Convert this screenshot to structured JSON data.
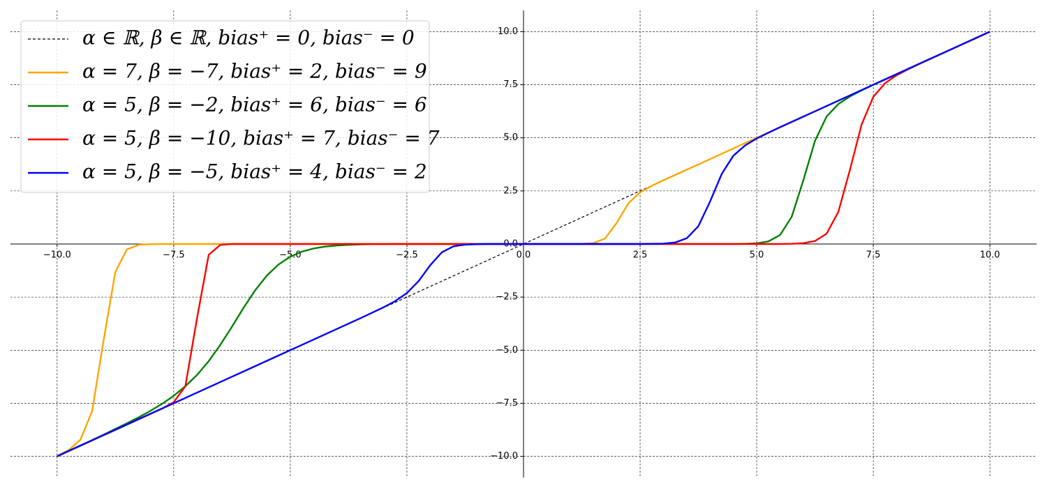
{
  "chart_data": {
    "type": "line",
    "x": [
      -10,
      -9.75,
      -9.5,
      -9.25,
      -9,
      -8.75,
      -8.5,
      -8.25,
      -8,
      -7.75,
      -7.5,
      -7.25,
      -7,
      -6.75,
      -6.5,
      -6.25,
      -6,
      -5.75,
      -5.5,
      -5.25,
      -5,
      -4.75,
      -4.5,
      -4.25,
      -4,
      -3.75,
      -3.5,
      -3.25,
      -3,
      -2.75,
      -2.5,
      -2.25,
      -2,
      -1.75,
      -1.5,
      -1.25,
      -1,
      -0.75,
      -0.5,
      -0.25,
      0,
      0.25,
      0.5,
      0.75,
      1,
      1.25,
      1.5,
      1.75,
      2,
      2.25,
      2.5,
      2.75,
      3,
      3.25,
      3.5,
      3.75,
      4,
      4.25,
      4.5,
      4.75,
      5,
      5.25,
      5.5,
      5.75,
      6,
      6.25,
      6.5,
      6.75,
      7,
      7.25,
      7.5,
      7.75,
      8,
      8.25,
      8.5,
      8.75,
      9,
      9.25,
      9.5,
      9.75,
      10
    ],
    "series": [
      {
        "name": "α ∈ ℝ, β ∈ ℝ, bias⁺ = 0, bias⁻ = 0",
        "color": "#000000",
        "linestyle": "dashed",
        "values": [
          -10,
          -9.75,
          -9.5,
          -9.25,
          -9,
          -8.75,
          -8.5,
          -8.25,
          -8,
          -7.75,
          -7.5,
          -7.25,
          -7,
          -6.75,
          -6.5,
          -6.25,
          -6,
          -5.75,
          -5.5,
          -5.25,
          -5,
          -4.75,
          -4.5,
          -4.25,
          -4,
          -3.75,
          -3.5,
          -3.25,
          -3,
          -2.75,
          -2.5,
          -2.25,
          -2,
          -1.75,
          -1.5,
          -1.25,
          -1,
          -0.75,
          -0.5,
          -0.25,
          0,
          0.25,
          0.5,
          0.75,
          1,
          1.25,
          1.5,
          1.75,
          2,
          2.25,
          2.5,
          2.75,
          3,
          3.25,
          3.5,
          3.75,
          4,
          4.25,
          4.5,
          4.75,
          5,
          5.25,
          5.5,
          5.75,
          6,
          6.25,
          6.5,
          6.75,
          7,
          7.25,
          7.5,
          7.75,
          8,
          8.25,
          8.5,
          8.75,
          9,
          9.25,
          9.5,
          9.75,
          10
        ]
      },
      {
        "name": "α = 7, β = −7, bias⁺ = 2, bias⁻ = 9",
        "color": "#ffa500",
        "linestyle": "solid",
        "values": [
          -9.99,
          -9.7,
          -9.22,
          -7.88,
          -4.5,
          -1.3,
          -0.25,
          -0.04,
          -0.01,
          0,
          0,
          0,
          0,
          0,
          0,
          0,
          0,
          0,
          0,
          0,
          0,
          0,
          0,
          0,
          0,
          0,
          0,
          0,
          0,
          0,
          0,
          0,
          0,
          0,
          0,
          0,
          0,
          0,
          0,
          0,
          0,
          0,
          0,
          0,
          0,
          0.01,
          0.04,
          0.26,
          1,
          1.92,
          2.43,
          2.74,
          3,
          3.25,
          3.5,
          3.75,
          4,
          4.25,
          4.5,
          4.75,
          5,
          5.25,
          5.5,
          5.75,
          6,
          6.25,
          6.5,
          6.75,
          7,
          7.25,
          7.5,
          7.75,
          8,
          8.25,
          8.5,
          8.75,
          9,
          9.25,
          9.5,
          9.75,
          10
        ]
      },
      {
        "name": "α = 5, β = −2, bias⁺ = 6, bias⁻ = 6",
        "color": "#008000",
        "linestyle": "solid",
        "values": [
          -10,
          -9.74,
          -9.49,
          -9.24,
          -8.98,
          -8.71,
          -8.44,
          -8.16,
          -7.86,
          -7.53,
          -7.15,
          -6.7,
          -6.17,
          -5.52,
          -4.75,
          -3.89,
          -3,
          -2.17,
          -1.48,
          -0.96,
          -0.6,
          -0.36,
          -0.21,
          -0.12,
          -0.07,
          -0.04,
          -0.02,
          -0.01,
          -0.01,
          0,
          0,
          0,
          0,
          0,
          0,
          0,
          0,
          0,
          0,
          0,
          0,
          0,
          0,
          0,
          0,
          0,
          0,
          0,
          0,
          0,
          0,
          0,
          0,
          0,
          0,
          0,
          0,
          0,
          0,
          0.01,
          0.03,
          0.12,
          0.42,
          1.28,
          3,
          4.86,
          6.01,
          6.59,
          6.95,
          7.24,
          7.5,
          7.75,
          8,
          8.25,
          8.5,
          8.75,
          9,
          9.25,
          9.5,
          9.75,
          10
        ]
      },
      {
        "name": "α = 5, β = −10, bias⁺ = 7, bias⁻ = 7",
        "color": "#ff0000",
        "linestyle": "solid",
        "values": [
          -10,
          -9.75,
          -9.5,
          -9.25,
          -9,
          -8.75,
          -8.5,
          -8.25,
          -8,
          -7.75,
          -7.45,
          -6.7,
          -3.5,
          -0.51,
          -0.04,
          0,
          0,
          0,
          0,
          0,
          0,
          0,
          0,
          0,
          0,
          0,
          0,
          0,
          0,
          0,
          0,
          0,
          0,
          0,
          0,
          0,
          0,
          0,
          0,
          0,
          0,
          0,
          0,
          0,
          0,
          0,
          0,
          0,
          0,
          0,
          0,
          0,
          0,
          0,
          0,
          0,
          0,
          0,
          0,
          0,
          0,
          0,
          0,
          0.01,
          0.04,
          0.14,
          0.49,
          1.51,
          3.5,
          5.63,
          6.93,
          7.57,
          7.95,
          8.23,
          8.5,
          8.75,
          9,
          9.25,
          9.5,
          9.75,
          10
        ]
      },
      {
        "name": "α = 5, β = −5, bias⁺ = 4, bias⁻ = 2",
        "color": "#0000ff",
        "linestyle": "solid",
        "values": [
          -10,
          -9.75,
          -9.5,
          -9.25,
          -9,
          -8.75,
          -8.5,
          -8.25,
          -8,
          -7.75,
          -7.5,
          -7.25,
          -7,
          -6.75,
          -6.5,
          -6.25,
          -6,
          -5.75,
          -5.5,
          -5.25,
          -5,
          -4.75,
          -4.5,
          -4.25,
          -4,
          -3.75,
          -3.5,
          -3.24,
          -2.98,
          -2.69,
          -2.31,
          -1.75,
          -1,
          -0.39,
          -0.11,
          -0.03,
          -0.01,
          0,
          0,
          0,
          0,
          0,
          0,
          0,
          0,
          0,
          0,
          0,
          0,
          0,
          0,
          0.01,
          0.02,
          0.07,
          0.27,
          0.84,
          2,
          3.3,
          4.16,
          4.64,
          4.97,
          5.24,
          5.5,
          5.75,
          6,
          6.25,
          6.5,
          6.75,
          7,
          7.25,
          7.5,
          7.75,
          8,
          8.25,
          8.5,
          8.75,
          9,
          9.25,
          9.5,
          9.75,
          10
        ]
      }
    ],
    "xlim": [
      -11,
      11
    ],
    "ylim": [
      -11,
      11
    ],
    "xticks": [
      {
        "value": -10,
        "label": "−10.0"
      },
      {
        "value": -7.5,
        "label": "−7.5"
      },
      {
        "value": -5,
        "label": "−5.0"
      },
      {
        "value": -2.5,
        "label": "−2.5"
      },
      {
        "value": 0,
        "label": "0.0"
      },
      {
        "value": 2.5,
        "label": "2.5"
      },
      {
        "value": 5,
        "label": "5.0"
      },
      {
        "value": 7.5,
        "label": "7.5"
      },
      {
        "value": 10,
        "label": "10.0"
      }
    ],
    "yticks": [
      {
        "value": -10,
        "label": "−10.0"
      },
      {
        "value": -7.5,
        "label": "−7.5"
      },
      {
        "value": -5,
        "label": "−5.0"
      },
      {
        "value": -2.5,
        "label": "−2.5"
      },
      {
        "value": 0,
        "label": "0.0"
      },
      {
        "value": 2.5,
        "label": "2.5"
      },
      {
        "value": 5,
        "label": "5.0"
      },
      {
        "value": 7.5,
        "label": "7.5"
      },
      {
        "value": 10,
        "label": "10.0"
      }
    ],
    "grid": true,
    "legend": "upper left"
  }
}
